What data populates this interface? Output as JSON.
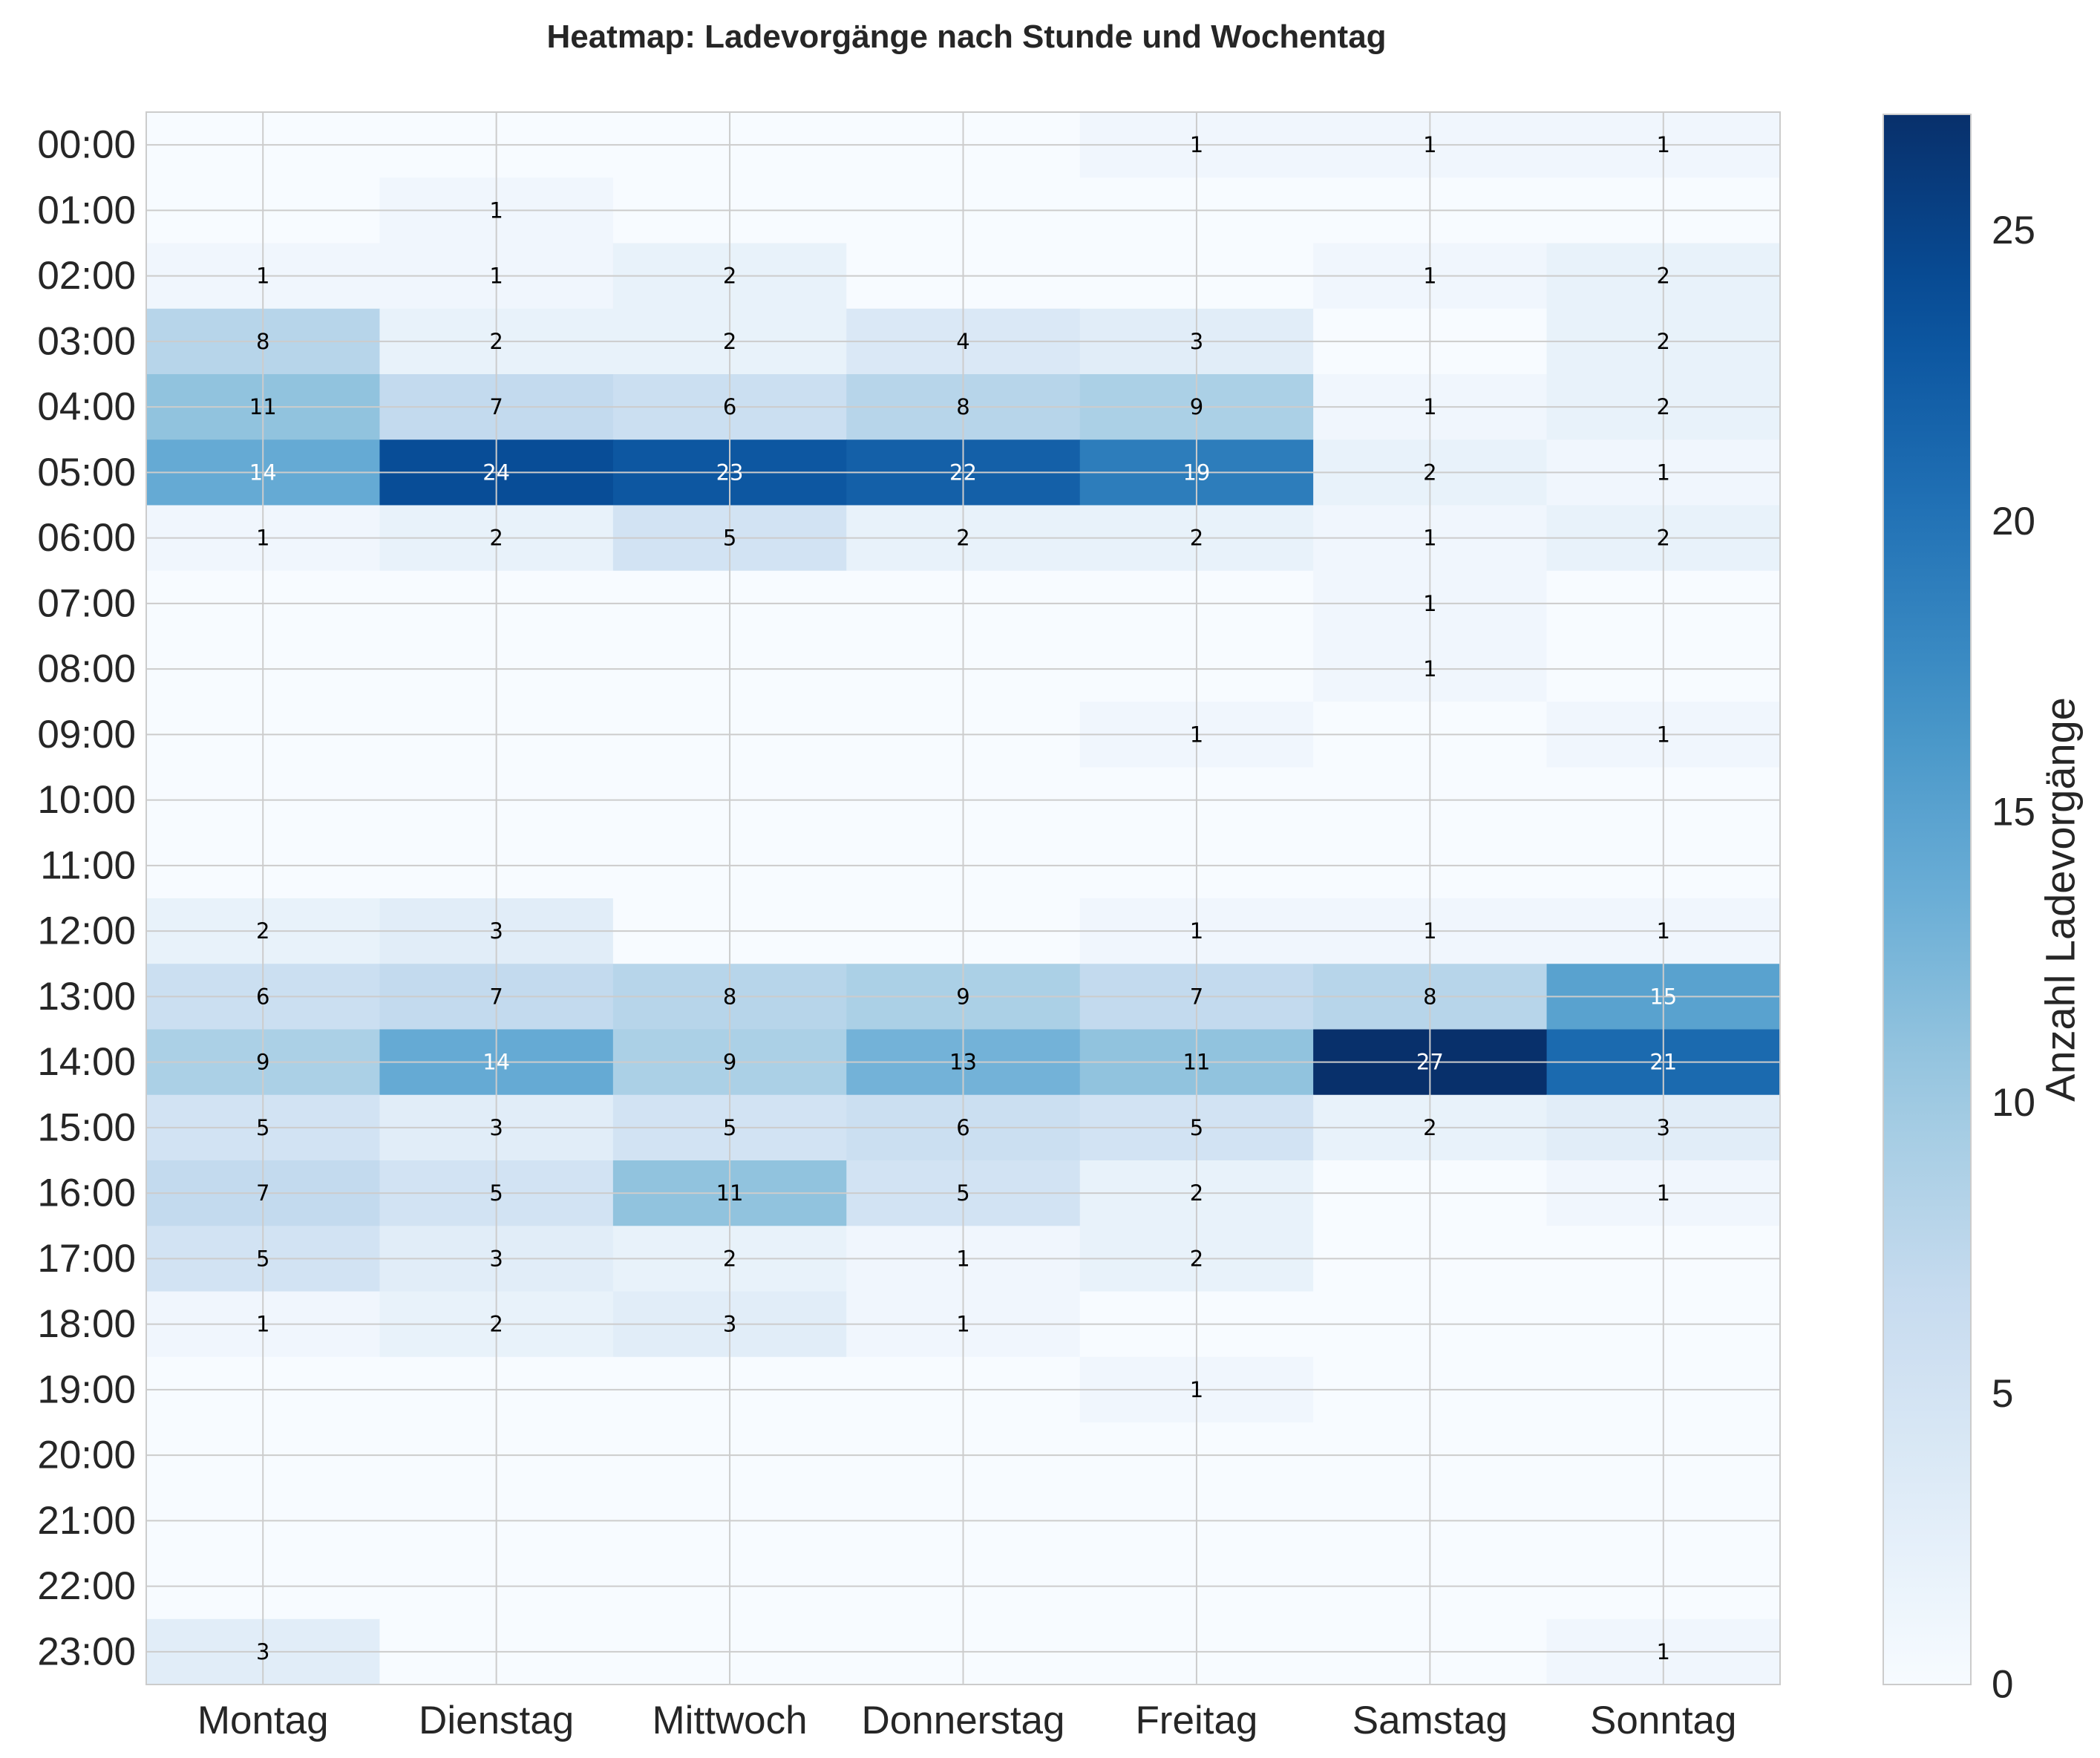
{
  "chart_data": {
    "type": "heatmap",
    "title": "Heatmap: Ladevorgänge nach Stunde und Wochentag",
    "xlabel": "",
    "ylabel": "",
    "x_categories": [
      "Montag",
      "Dienstag",
      "Mittwoch",
      "Donnerstag",
      "Freitag",
      "Samstag",
      "Sonntag"
    ],
    "y_categories": [
      "00:00",
      "01:00",
      "02:00",
      "03:00",
      "04:00",
      "05:00",
      "06:00",
      "07:00",
      "08:00",
      "09:00",
      "10:00",
      "11:00",
      "12:00",
      "13:00",
      "14:00",
      "15:00",
      "16:00",
      "17:00",
      "18:00",
      "19:00",
      "20:00",
      "21:00",
      "22:00",
      "23:00"
    ],
    "values": [
      [
        0,
        0,
        0,
        0,
        1,
        1,
        1
      ],
      [
        0,
        1,
        0,
        0,
        0,
        0,
        0
      ],
      [
        1,
        1,
        2,
        0,
        0,
        1,
        2
      ],
      [
        8,
        2,
        2,
        4,
        3,
        0,
        2
      ],
      [
        11,
        7,
        6,
        8,
        9,
        1,
        2
      ],
      [
        14,
        24,
        23,
        22,
        19,
        2,
        1
      ],
      [
        1,
        2,
        5,
        2,
        2,
        1,
        2
      ],
      [
        0,
        0,
        0,
        0,
        0,
        1,
        0
      ],
      [
        0,
        0,
        0,
        0,
        0,
        1,
        0
      ],
      [
        0,
        0,
        0,
        0,
        1,
        0,
        1
      ],
      [
        0,
        0,
        0,
        0,
        0,
        0,
        0
      ],
      [
        0,
        0,
        0,
        0,
        0,
        0,
        0
      ],
      [
        2,
        3,
        0,
        0,
        1,
        1,
        1
      ],
      [
        6,
        7,
        8,
        9,
        7,
        8,
        15
      ],
      [
        9,
        14,
        9,
        13,
        11,
        27,
        21
      ],
      [
        5,
        3,
        5,
        6,
        5,
        2,
        3
      ],
      [
        7,
        5,
        11,
        5,
        2,
        0,
        1
      ],
      [
        5,
        3,
        2,
        1,
        2,
        0,
        0
      ],
      [
        1,
        2,
        3,
        1,
        0,
        0,
        0
      ],
      [
        0,
        0,
        0,
        0,
        1,
        0,
        0
      ],
      [
        0,
        0,
        0,
        0,
        0,
        0,
        0
      ],
      [
        0,
        0,
        0,
        0,
        0,
        0,
        0
      ],
      [
        0,
        0,
        0,
        0,
        0,
        0,
        0
      ],
      [
        3,
        0,
        0,
        0,
        0,
        0,
        1
      ]
    ],
    "zero_values_labeled": false,
    "colormap": "Blues",
    "vmin": 0,
    "vmax": 27,
    "colorbar": {
      "label": "Anzahl Ladevorgänge",
      "ticks": [
        0,
        5,
        10,
        15,
        20,
        25
      ],
      "position": "right"
    },
    "grid": true
  },
  "colors": {
    "grid": "#cccccc",
    "text_dark": "#000000",
    "text_light": "#ffffff",
    "axis_text": "#262626"
  }
}
